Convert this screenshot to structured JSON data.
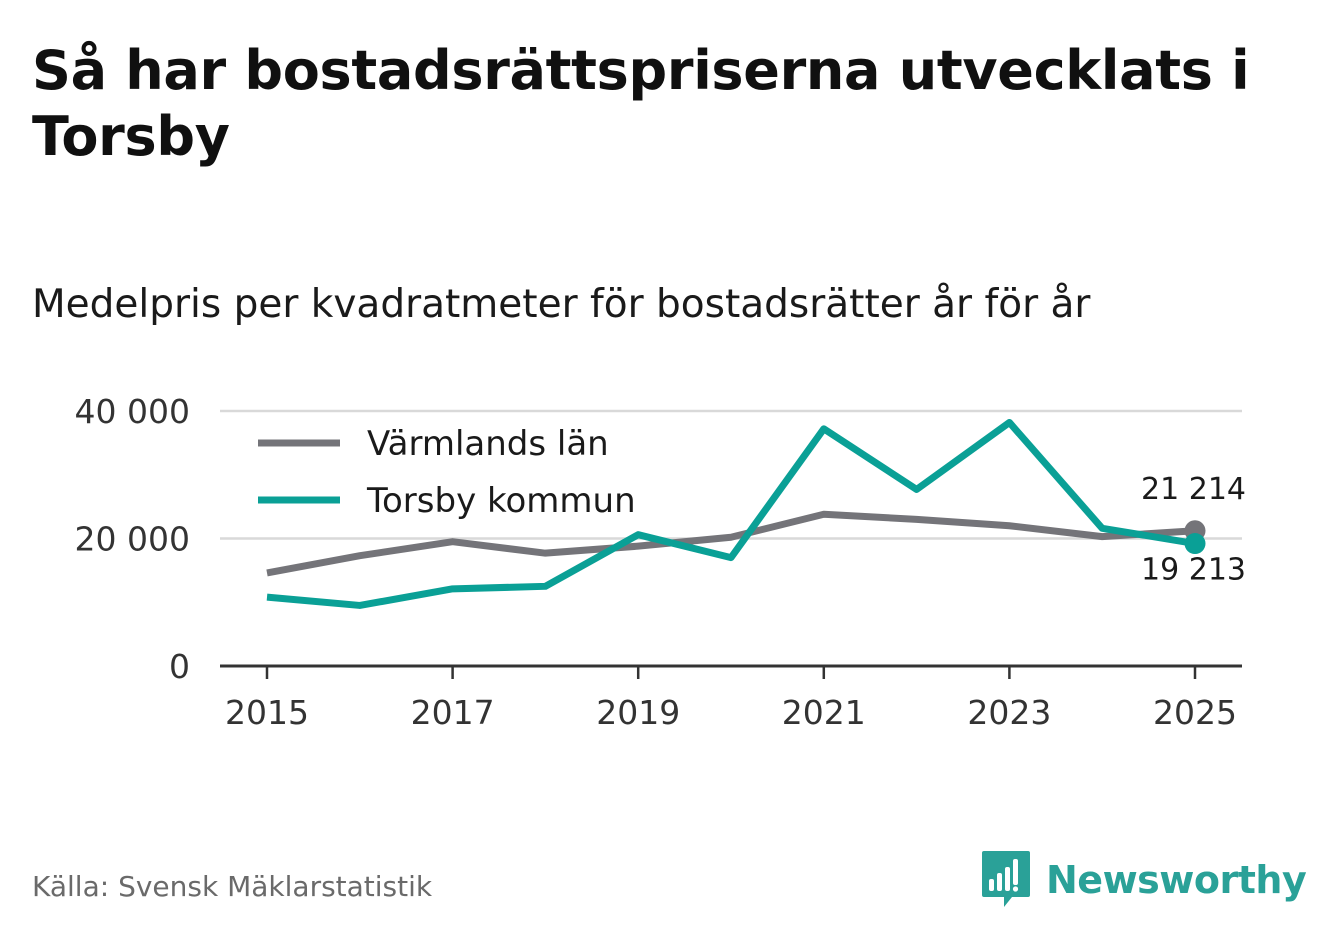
{
  "title": "Så har bostadsrättspriserna utvecklats i Torsby",
  "subtitle": "Medelpris per kvadratmeter för bostadsrätter år för år",
  "source": "Källa: Svensk Mäklarstatistik",
  "brand": {
    "name": "Newsworthy",
    "color": "#2aa198"
  },
  "chart_data": {
    "type": "line",
    "x": [
      2015,
      2016,
      2017,
      2018,
      2019,
      2020,
      2021,
      2022,
      2023,
      2024,
      2025
    ],
    "x_ticks": [
      "2015",
      "2017",
      "2019",
      "2021",
      "2023",
      "2025"
    ],
    "x_tick_values": [
      2015,
      2017,
      2019,
      2021,
      2023,
      2025
    ],
    "y_ticks": [
      "0",
      "20 000",
      "40 000"
    ],
    "y_tick_values": [
      0,
      20000,
      40000
    ],
    "ylim": [
      0,
      40000
    ],
    "xlim": [
      2015,
      2025
    ],
    "grid": true,
    "legend_position": "top-left",
    "series": [
      {
        "name": "Värmlands län",
        "color": "#747479",
        "values": [
          14600,
          17300,
          19500,
          17700,
          18800,
          20200,
          23800,
          23000,
          22000,
          20300,
          21214
        ],
        "end_label": "21 214"
      },
      {
        "name": "Torsby kommun",
        "color": "#0aa096",
        "values": [
          10800,
          9500,
          12100,
          12500,
          20600,
          17000,
          37200,
          27700,
          38200,
          21600,
          19213
        ],
        "end_label": "19 213"
      }
    ]
  }
}
